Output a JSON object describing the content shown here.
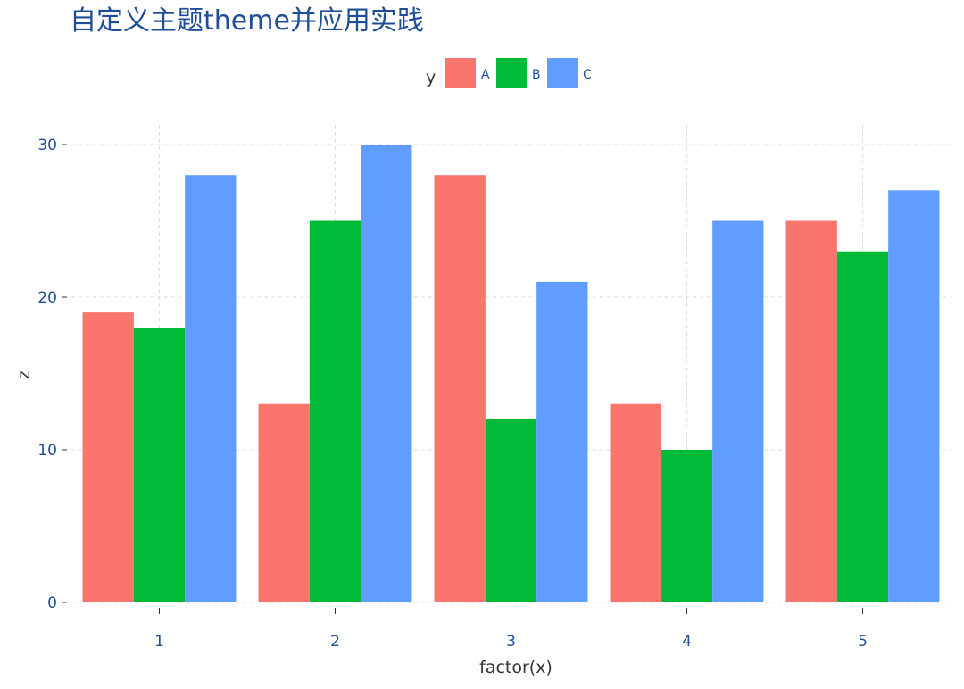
{
  "chart_data": {
    "type": "bar",
    "title": "自定义主题theme并应用实践",
    "xlabel": "factor(x)",
    "ylabel": "z",
    "categories": [
      "1",
      "2",
      "3",
      "4",
      "5"
    ],
    "legend_title": "y",
    "legend_position": "top",
    "series": [
      {
        "name": "A",
        "color": "#F8766D",
        "values": [
          19,
          13,
          28,
          13,
          25
        ]
      },
      {
        "name": "B",
        "color": "#00BA38",
        "values": [
          18,
          25,
          12,
          10,
          23
        ]
      },
      {
        "name": "C",
        "color": "#619CFF",
        "values": [
          28,
          30,
          21,
          25,
          27
        ]
      }
    ],
    "ylim": [
      0,
      30
    ],
    "yticks": [
      "0",
      "10",
      "20",
      "30"
    ],
    "grid": true
  }
}
